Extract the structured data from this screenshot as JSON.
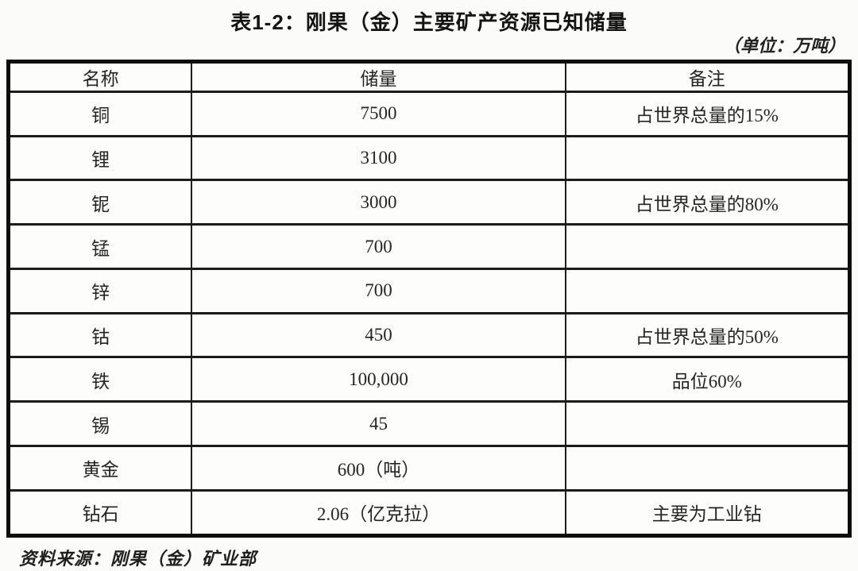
{
  "title": "表1-2：刚果（金）主要矿产资源已知储量",
  "unit_note": "（单位：万吨）",
  "source_note": "资料来源：刚果（金）矿业部",
  "table": {
    "columns": [
      "名称",
      "储量",
      "备注"
    ],
    "rows": [
      [
        "铜",
        "7500",
        "占世界总量的15%"
      ],
      [
        "锂",
        "3100",
        ""
      ],
      [
        "铌",
        "3000",
        "占世界总量的80%"
      ],
      [
        "锰",
        "700",
        ""
      ],
      [
        "锌",
        "700",
        ""
      ],
      [
        "钴",
        "450",
        "占世界总量的50%"
      ],
      [
        "铁",
        "100,000",
        "品位60%"
      ],
      [
        "锡",
        "45",
        ""
      ],
      [
        "黄金",
        "600（吨）",
        ""
      ],
      [
        "钻石",
        "2.06（亿克拉）",
        "主要为工业钻"
      ]
    ]
  }
}
